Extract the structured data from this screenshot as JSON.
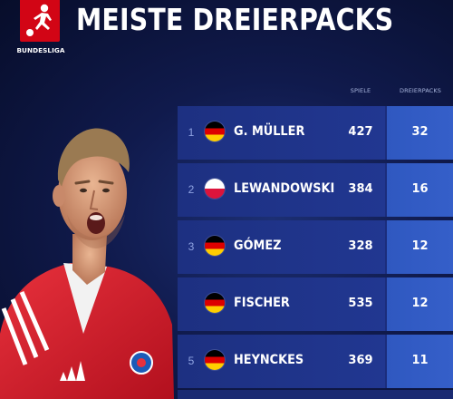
{
  "header": {
    "title": "MEISTE DREIERPACKS",
    "logo_text": "BUNDESLIGA",
    "logo_icon": "bundesliga-logo"
  },
  "table": {
    "columns": {
      "games": "SPIELE",
      "hattricks": "DREIERPACKS"
    },
    "rows": [
      {
        "rank": "1",
        "flag": "germany",
        "name": "G. MÜLLER",
        "games": "427",
        "hattricks": "32"
      },
      {
        "rank": "2",
        "flag": "poland",
        "name": "LEWANDOWSKI",
        "games": "384",
        "hattricks": "16"
      },
      {
        "rank": "3",
        "flag": "germany",
        "name": "GÓMEZ",
        "games": "328",
        "hattricks": "12"
      },
      {
        "rank": "",
        "flag": "germany",
        "name": "FISCHER",
        "games": "535",
        "hattricks": "12"
      },
      {
        "rank": "5",
        "flag": "germany",
        "name": "HEYNCKES",
        "games": "369",
        "hattricks": "11"
      }
    ]
  },
  "colors": {
    "brand_red": "#d20515",
    "row_blue": "#1d3081",
    "highlight_blue": "#355fc9",
    "background": "#101a4c"
  }
}
